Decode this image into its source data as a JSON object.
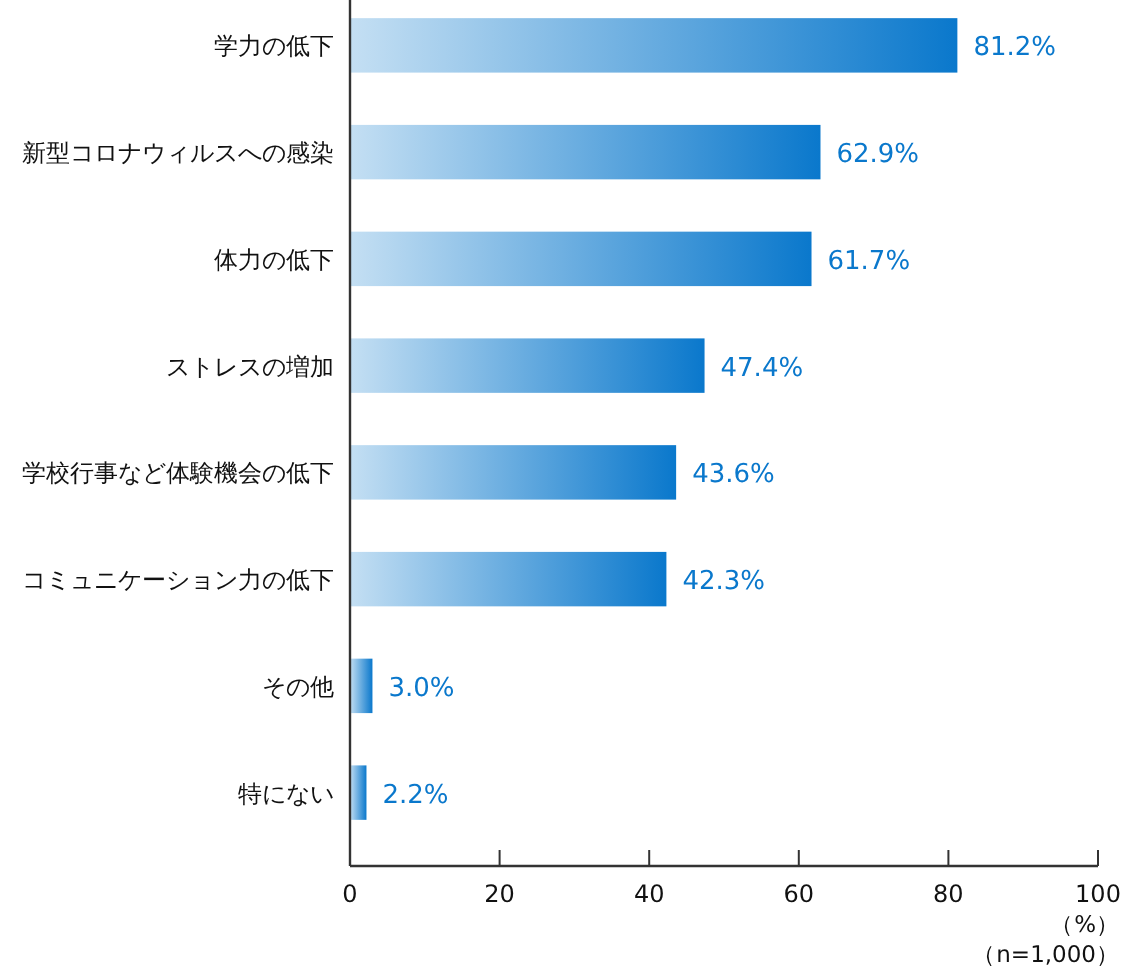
{
  "chart_data": {
    "type": "bar",
    "orientation": "horizontal",
    "categories": [
      "学力の低下",
      "新型コロナウィルスへの感染",
      "体力の低下",
      "ストレスの増加",
      "学校行事など体験機会の低下",
      "コミュニケーション力の低下",
      "その他",
      "特にない"
    ],
    "values": [
      81.2,
      62.9,
      61.7,
      47.4,
      43.6,
      42.3,
      3.0,
      2.2
    ],
    "value_labels": [
      "81.2%",
      "62.9%",
      "61.7%",
      "47.4%",
      "43.6%",
      "42.3%",
      "3.0%",
      "2.2%"
    ],
    "color": "#0a78cc",
    "xlim": [
      0,
      100
    ],
    "xticks": [
      0,
      20,
      40,
      60,
      80,
      100
    ],
    "xlabel": "（%）",
    "annotations": [
      "（n=1,000）"
    ]
  }
}
